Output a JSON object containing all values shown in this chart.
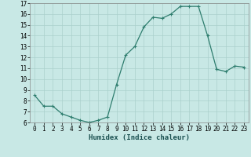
{
  "x": [
    0,
    1,
    2,
    3,
    4,
    5,
    6,
    7,
    8,
    9,
    10,
    11,
    12,
    13,
    14,
    15,
    16,
    17,
    18,
    19,
    20,
    21,
    22,
    23
  ],
  "y": [
    8.5,
    7.5,
    7.5,
    6.8,
    6.5,
    6.2,
    6.0,
    6.2,
    6.5,
    9.5,
    12.2,
    13.0,
    14.8,
    15.7,
    15.6,
    16.0,
    16.7,
    16.7,
    16.7,
    14.0,
    10.9,
    10.7,
    11.2,
    11.1
  ],
  "line_color": "#2e7d6e",
  "marker": "+",
  "marker_size": 3,
  "bg_color": "#c8e8e5",
  "grid_color": "#aad0cc",
  "xlabel": "Humidex (Indice chaleur)",
  "ylim": [
    6,
    17
  ],
  "xlim": [
    -0.5,
    23.5
  ],
  "yticks": [
    6,
    7,
    8,
    9,
    10,
    11,
    12,
    13,
    14,
    15,
    16,
    17
  ],
  "xticks": [
    0,
    1,
    2,
    3,
    4,
    5,
    6,
    7,
    8,
    9,
    10,
    11,
    12,
    13,
    14,
    15,
    16,
    17,
    18,
    19,
    20,
    21,
    22,
    23
  ],
  "xlabel_fontsize": 6.5,
  "tick_fontsize": 5.5,
  "marker_edge_width": 0.8,
  "line_width": 0.9
}
